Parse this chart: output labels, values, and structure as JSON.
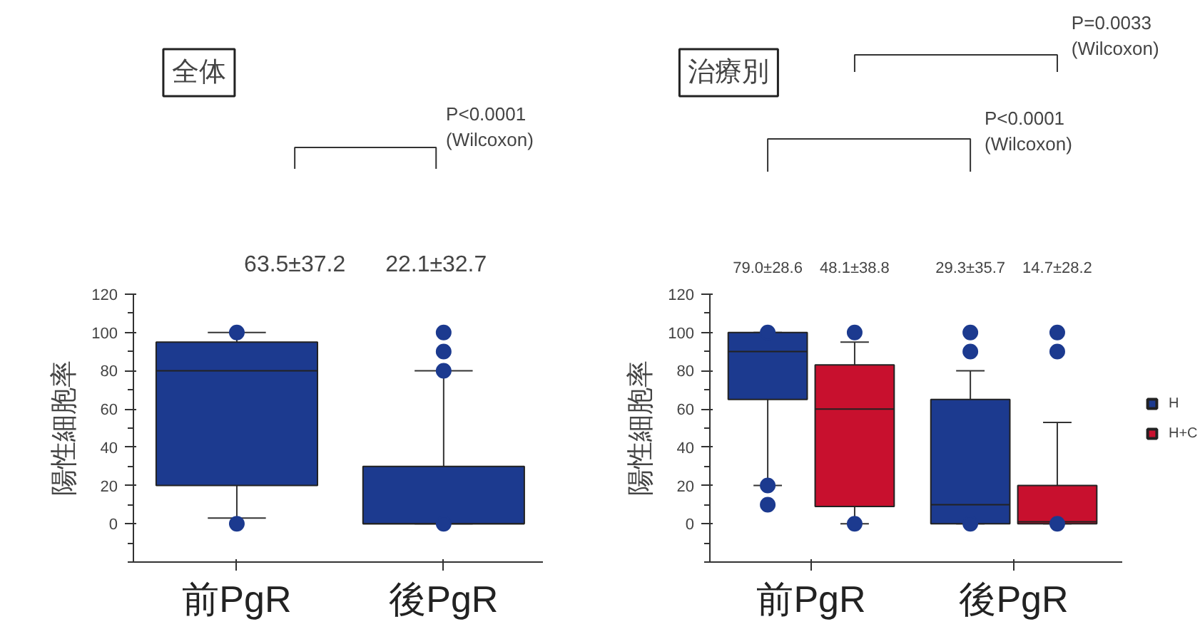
{
  "chart_data": [
    {
      "type": "box",
      "title": "全体",
      "ylabel": "陽性細胞率",
      "categories": [
        "前PgR",
        "後PgR"
      ],
      "ylim": [
        -20,
        120
      ],
      "yticks": [
        0,
        20,
        40,
        60,
        80,
        100,
        120
      ],
      "grid": false,
      "series": [
        {
          "color": "#1c3a8f",
          "boxes": [
            {
              "low": 3,
              "q1": 20,
              "median": 80,
              "q3": 95,
              "high": 100,
              "outliers": [
                100,
                0
              ]
            },
            {
              "low": 0,
              "q1": 0,
              "median": 0,
              "q3": 30,
              "high": 80,
              "outliers": [
                100,
                90,
                80,
                0
              ]
            }
          ]
        }
      ],
      "annotations": [
        "63.5±37.2",
        "22.1±32.7",
        "P<0.0001\n(Wilcoxon)"
      ]
    },
    {
      "type": "box",
      "title": "治療別",
      "ylabel": "陽性細胞率",
      "categories": [
        "前PgR",
        "後PgR"
      ],
      "ylim": [
        -20,
        120
      ],
      "yticks": [
        0,
        20,
        40,
        60,
        80,
        100,
        120
      ],
      "grid": false,
      "legend": "right",
      "series": [
        {
          "name": "H",
          "color": "#1c3a8f",
          "boxes": [
            {
              "low": 20,
              "q1": 65,
              "median": 90,
              "q3": 100,
              "high": 100,
              "outliers": [
                100,
                20,
                10
              ]
            },
            {
              "low": 0,
              "q1": 0,
              "median": 10,
              "q3": 65,
              "high": 80,
              "outliers": [
                100,
                90,
                0
              ]
            }
          ]
        },
        {
          "name": "H+C",
          "color": "#c8102e",
          "boxes": [
            {
              "low": 0,
              "q1": 9,
              "median": 60,
              "q3": 83,
              "high": 95,
              "outliers": [
                100,
                0
              ]
            },
            {
              "low": 0,
              "q1": 0,
              "median": 1,
              "q3": 20,
              "high": 53,
              "outliers": [
                100,
                90,
                0
              ]
            }
          ]
        }
      ],
      "annotations": [
        "79.0±28.6",
        "48.1±38.8",
        "29.3±35.7",
        "14.7±28.2",
        "P<0.0001\n(Wilcoxon)",
        "P=0.0033\n(Wilcoxon)"
      ]
    }
  ]
}
